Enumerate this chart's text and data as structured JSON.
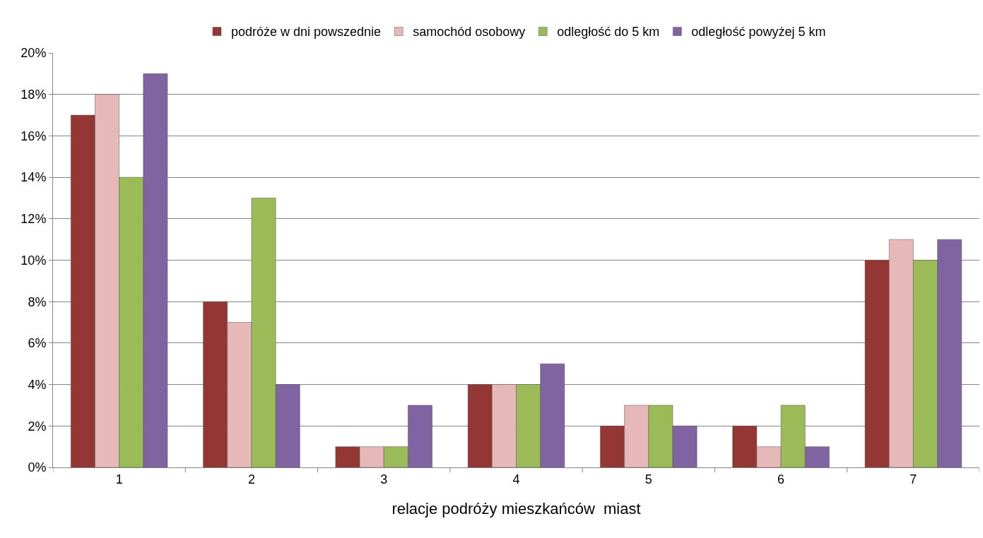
{
  "chart_data": {
    "type": "bar",
    "xlabel": "relacje podróży mieszkańców  miast",
    "categories": [
      "1",
      "2",
      "3",
      "4",
      "5",
      "6",
      "7"
    ],
    "series": [
      {
        "name": "podróże w dni powszednie",
        "color": "#943634",
        "values": [
          17,
          8,
          1,
          4,
          2,
          2,
          10
        ]
      },
      {
        "name": "samochód osobowy",
        "color": "#e6b9b8",
        "values": [
          18,
          7,
          1,
          4,
          3,
          1,
          11
        ]
      },
      {
        "name": "odległość do 5 km",
        "color": "#9bbb59",
        "values": [
          14,
          13,
          1,
          4,
          3,
          3,
          10
        ]
      },
      {
        "name": "odległość powyżej 5 km",
        "color": "#8064a2",
        "values": [
          19,
          4,
          3,
          5,
          2,
          1,
          11
        ]
      }
    ],
    "ylim": [
      0,
      20
    ],
    "yticks": [
      {
        "value": 0,
        "label": "0%"
      },
      {
        "value": 2,
        "label": "2%"
      },
      {
        "value": 4,
        "label": "4%"
      },
      {
        "value": 6,
        "label": "6%"
      },
      {
        "value": 8,
        "label": "8%"
      },
      {
        "value": 10,
        "label": "10%"
      },
      {
        "value": 12,
        "label": "12%"
      },
      {
        "value": 14,
        "label": "14%"
      },
      {
        "value": 16,
        "label": "16%"
      },
      {
        "value": 18,
        "label": "18%"
      },
      {
        "value": 20,
        "label": "20%"
      }
    ],
    "grid": "y",
    "legend": "top"
  }
}
